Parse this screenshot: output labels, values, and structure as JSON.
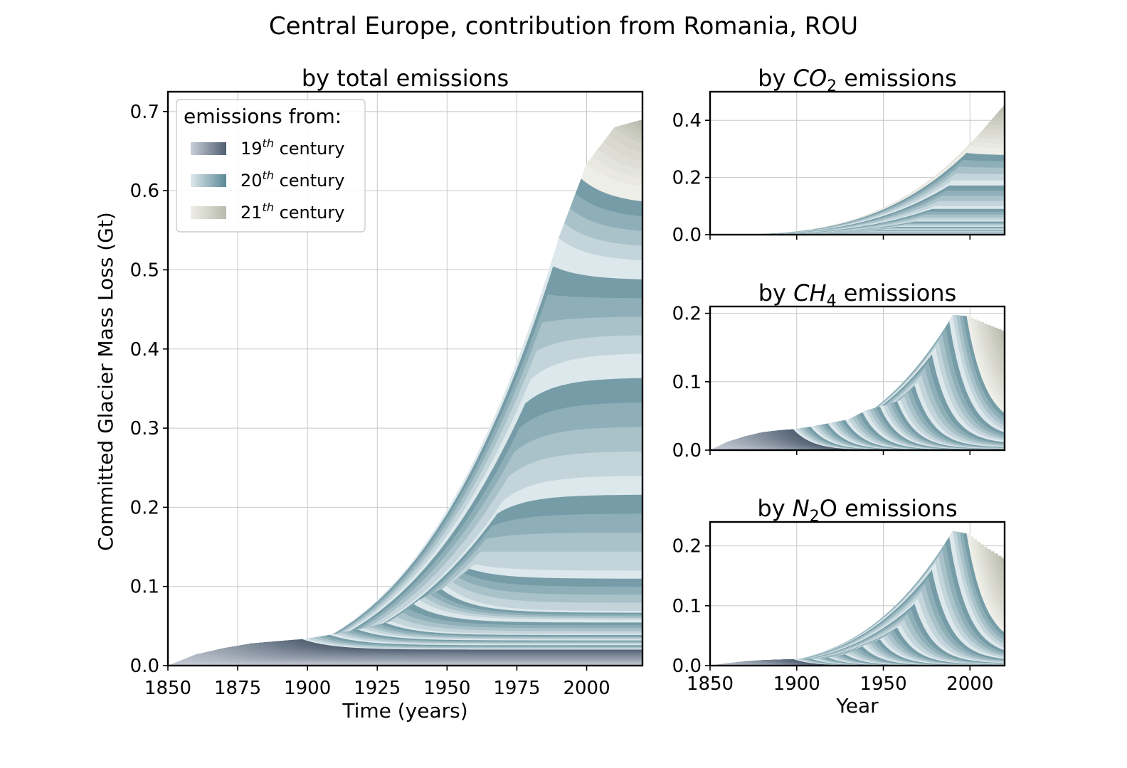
{
  "figure_title": "Central Europe, contribution from Romania, ROU",
  "colors": {
    "c19": [
      "#c9cfd8",
      "#4f5e71"
    ],
    "c20": [
      "#dde8ec",
      "#5b8996"
    ],
    "c21": [
      "#eeeee8",
      "#b9baac"
    ],
    "grid": "#c8c8c8"
  },
  "legend": {
    "title": "emissions from:",
    "entries": [
      {
        "base": "19",
        "sup": "th",
        "tail": " century"
      },
      {
        "base": "20",
        "sup": "th",
        "tail": " century"
      },
      {
        "base": "21",
        "sup": "th",
        "tail": " century"
      }
    ]
  },
  "chart_data": [
    {
      "id": "total",
      "type": "area",
      "title": {
        "pre": "by total emissions",
        "chem": "",
        "sub": "",
        "post": ""
      },
      "xlabel": "Time (years)",
      "ylabel": "Committed Glacier Mass Loss (Gt)",
      "xlim": [
        1850,
        2020
      ],
      "ylim": [
        0,
        0.725
      ],
      "xticks": [
        1850,
        1875,
        1900,
        1925,
        1950,
        1975,
        2000
      ],
      "yticks": [
        0.0,
        0.1,
        0.2,
        0.3,
        0.4,
        0.5,
        0.6,
        0.7
      ],
      "ytick_labels": [
        "0.0",
        "0.1",
        "0.2",
        "0.3",
        "0.4",
        "0.5",
        "0.6",
        "0.7"
      ],
      "peak_year_start": 1850,
      "peak_year_step": 10,
      "peak_values": [
        0.0,
        0.014,
        0.022,
        0.028,
        0.031,
        0.034,
        0.04,
        0.047,
        0.056,
        0.083,
        0.1,
        0.128,
        0.208,
        0.362,
        0.54,
        0.634,
        0.68,
        0.69
      ],
      "end_values": [
        0.0,
        0.004,
        0.008,
        0.013,
        0.017,
        0.021,
        0.027,
        0.033,
        0.04,
        0.058,
        0.069,
        0.12,
        0.24,
        0.395,
        0.51,
        0.6,
        0.645,
        0.66
      ]
    },
    {
      "id": "co2",
      "type": "area",
      "title": {
        "pre": "by ",
        "chem": "CO",
        "sub": "2",
        "post": " emissions"
      },
      "xlabel": "",
      "ylabel": "",
      "xlim": [
        1850,
        2020
      ],
      "ylim": [
        0,
        0.5
      ],
      "xticks": [
        1850,
        1900,
        1950,
        2000
      ],
      "yticks": [
        0.0,
        0.2,
        0.4
      ],
      "ytick_labels": [
        "0.0",
        "0.2",
        "0.4"
      ],
      "peak_year_start": 1850,
      "peak_year_step": 10,
      "peak_values": [
        0.0,
        0.0,
        0.0,
        0.0,
        0.0,
        0.0,
        0.001,
        0.002,
        0.004,
        0.01,
        0.018,
        0.03,
        0.05,
        0.1,
        0.19,
        0.31,
        0.385,
        0.455
      ],
      "end_values": [
        0.0,
        0.0,
        0.0,
        0.0,
        0.0,
        0.0,
        0.001,
        0.002,
        0.004,
        0.01,
        0.018,
        0.03,
        0.05,
        0.1,
        0.19,
        0.3,
        0.38,
        0.45
      ]
    },
    {
      "id": "ch4",
      "type": "area",
      "title": {
        "pre": "by ",
        "chem": "CH",
        "sub": "4",
        "post": " emissions"
      },
      "xlabel": "",
      "ylabel": "",
      "xlim": [
        1850,
        2020
      ],
      "ylim": [
        0,
        0.21
      ],
      "xticks": [
        1850,
        1900,
        1950,
        2000
      ],
      "yticks": [
        0.0,
        0.1,
        0.2
      ],
      "ytick_labels": [
        "0.0",
        "0.1",
        "0.2"
      ],
      "peak_year_start": 1850,
      "peak_year_step": 10,
      "peak_values": [
        0.0,
        0.012,
        0.02,
        0.026,
        0.029,
        0.031,
        0.035,
        0.04,
        0.045,
        0.058,
        0.065,
        0.073,
        0.1,
        0.15,
        0.198,
        0.196,
        0.185,
        0.175
      ],
      "end_values": [
        0.0,
        0.0,
        0.0,
        0.0,
        0.0,
        0.0,
        0.0,
        0.0,
        0.0,
        0.0,
        0.001,
        0.002,
        0.004,
        0.01,
        0.018,
        0.035,
        0.058,
        0.085
      ]
    },
    {
      "id": "n2o",
      "type": "area",
      "title": {
        "pre": "by ",
        "chem": "N",
        "sub": "2",
        "post": "O emissions"
      },
      "xlabel": "Year",
      "ylabel": "",
      "xlim": [
        1850,
        2020
      ],
      "ylim": [
        0,
        0.24
      ],
      "xticks": [
        1850,
        1900,
        1950,
        2000
      ],
      "yticks": [
        0.0,
        0.1,
        0.2
      ],
      "ytick_labels": [
        "0.0",
        "0.1",
        "0.2"
      ],
      "peak_year_start": 1850,
      "peak_year_step": 10,
      "peak_values": [
        0.0,
        0.004,
        0.007,
        0.009,
        0.01,
        0.011,
        0.012,
        0.014,
        0.02,
        0.035,
        0.046,
        0.068,
        0.112,
        0.172,
        0.226,
        0.22,
        0.198,
        0.18
      ],
      "end_values": [
        0.0,
        0.0,
        0.0,
        0.0,
        0.0,
        0.0,
        0.0,
        0.0,
        0.0,
        0.0,
        0.001,
        0.002,
        0.004,
        0.009,
        0.016,
        0.032,
        0.055,
        0.085
      ]
    }
  ]
}
